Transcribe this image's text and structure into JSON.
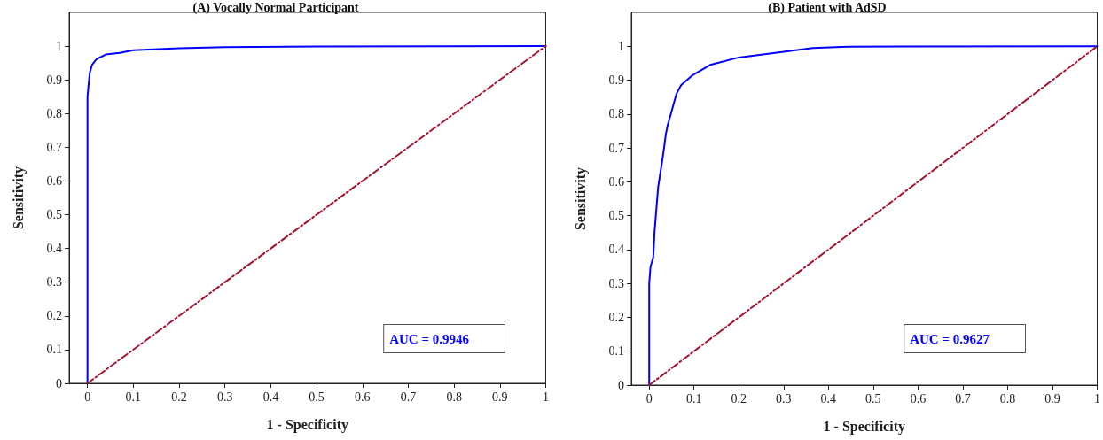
{
  "chart_data": [
    {
      "type": "line",
      "title": "(A) Vocally Normal Participant",
      "xlabel": "1 - Specificity",
      "ylabel": "Sensitivity",
      "annotations": [
        "AUC = 0.9946"
      ],
      "xlim": [
        -0.04,
        1
      ],
      "ylim": [
        0,
        1.1
      ],
      "xticks": [
        0,
        0.1,
        0.2,
        0.3,
        0.4,
        0.5,
        0.6,
        0.7,
        0.8,
        0.9,
        1
      ],
      "yticks": [
        0,
        0.1,
        0.2,
        0.3,
        0.4,
        0.5,
        0.6,
        0.7,
        0.8,
        0.9,
        1
      ],
      "grid": false,
      "marker": "none",
      "series": [
        {
          "color": "#0000ff",
          "line_style": "solid",
          "x": [
            0,
            0,
            0.002,
            0.005,
            0.01,
            0.02,
            0.04,
            0.07,
            0.1,
            0.2,
            0.3,
            0.5,
            1
          ],
          "values": [
            0,
            0.85,
            0.88,
            0.92,
            0.945,
            0.962,
            0.975,
            0.98,
            0.988,
            0.994,
            0.997,
            0.999,
            1
          ]
        },
        {
          "color": "#a2142f",
          "line_style": "dashed",
          "x": [
            0,
            1
          ],
          "values": [
            0,
            1
          ]
        }
      ]
    },
    {
      "type": "line",
      "title": "(B) Patient with AdSD",
      "xlabel": "1 - Specificity",
      "ylabel": "Sensitivity",
      "annotations": [
        "AUC = 0.9627"
      ],
      "xlim": [
        -0.04,
        1
      ],
      "ylim": [
        0,
        1.1
      ],
      "xticks": [
        0,
        0.1,
        0.2,
        0.3,
        0.4,
        0.5,
        0.6,
        0.7,
        0.8,
        0.9,
        1
      ],
      "yticks": [
        0,
        0.1,
        0.2,
        0.3,
        0.4,
        0.5,
        0.6,
        0.7,
        0.8,
        0.9,
        1
      ],
      "grid": false,
      "marker": "none",
      "series": [
        {
          "color": "#0000ff",
          "line_style": "solid",
          "x": [
            0,
            0,
            0.003,
            0.009,
            0.012,
            0.02,
            0.031,
            0.037,
            0.041,
            0.061,
            0.071,
            0.097,
            0.136,
            0.2,
            0.3,
            0.365,
            0.443,
            1
          ],
          "values": [
            0,
            0.3,
            0.35,
            0.377,
            0.455,
            0.585,
            0.68,
            0.74,
            0.766,
            0.86,
            0.885,
            0.915,
            0.945,
            0.967,
            0.984,
            0.995,
            0.999,
            1
          ]
        },
        {
          "color": "#a2142f",
          "line_style": "dashed",
          "x": [
            0,
            1
          ],
          "values": [
            0,
            1
          ]
        }
      ]
    }
  ]
}
